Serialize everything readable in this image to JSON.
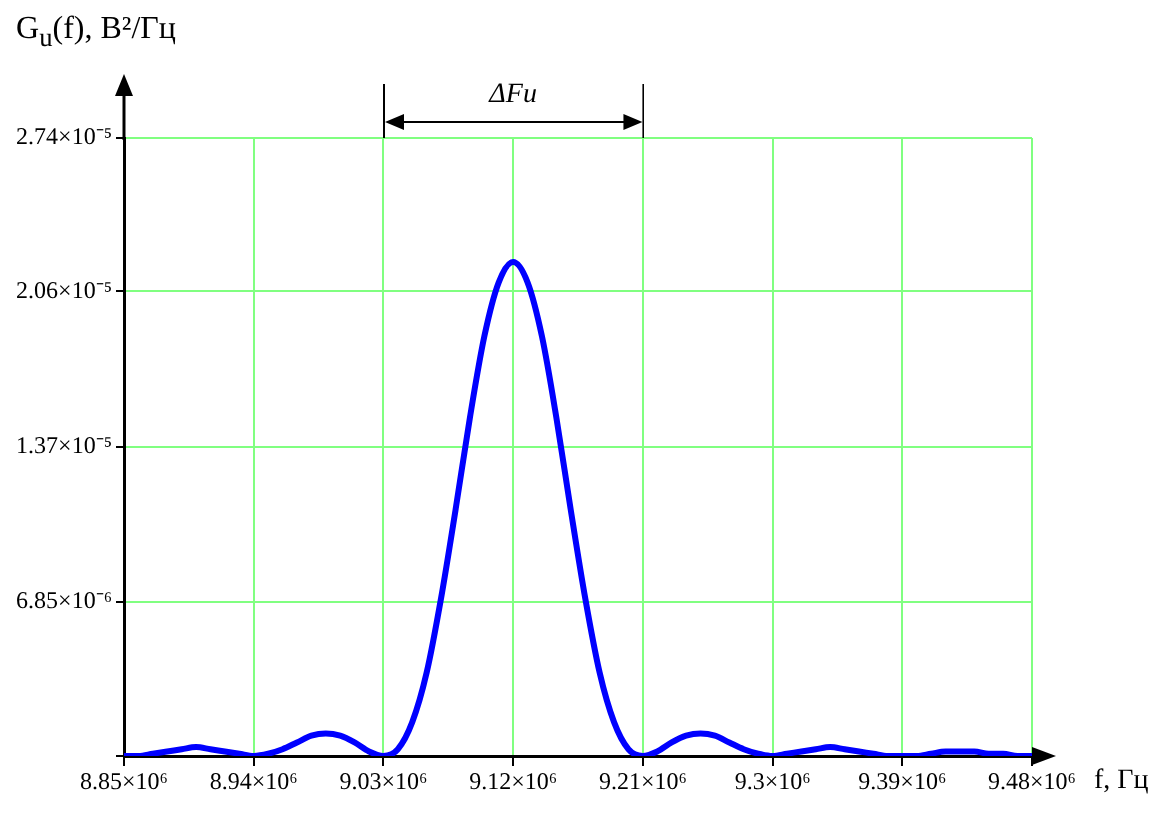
{
  "chart_data": {
    "type": "line",
    "xlabel": "f, Гц",
    "ylabel": "G$_{u}$(f), В²/Гц",
    "annotations": [
      "ΔFu"
    ],
    "x": [
      8850000,
      8860000,
      8870000,
      8880000,
      8890000,
      8900000,
      8910000,
      8920000,
      8930000,
      8940000,
      8950000,
      8960000,
      8970000,
      8980000,
      8990000,
      9000000,
      9010000,
      9020000,
      9030000,
      9040000,
      9050000,
      9060000,
      9070000,
      9080000,
      9090000,
      9100000,
      9110000,
      9120000,
      9130000,
      9140000,
      9150000,
      9160000,
      9170000,
      9180000,
      9190000,
      9200000,
      9210000,
      9220000,
      9230000,
      9240000,
      9250000,
      9260000,
      9270000,
      9280000,
      9290000,
      9300000,
      9310000,
      9320000,
      9330000,
      9340000,
      9350000,
      9360000,
      9370000,
      9380000,
      9390000,
      9400000,
      9410000,
      9420000,
      9430000,
      9440000,
      9450000,
      9460000,
      9470000,
      9480000
    ],
    "series": [
      {
        "color": "#0000ff",
        "values": [
          0,
          0,
          1e-07,
          2e-07,
          3e-07,
          4e-07,
          3e-07,
          2e-07,
          1e-07,
          0,
          1e-07,
          3e-07,
          6e-07,
          9e-07,
          1e-06,
          9e-07,
          6e-07,
          2e-07,
          0,
          3e-07,
          1.5e-06,
          3.7e-06,
          7e-06,
          1.09e-05,
          1.5e-05,
          1.86e-05,
          2.1e-05,
          2.19e-05,
          2.1e-05,
          1.86e-05,
          1.5e-05,
          1.09e-05,
          7e-06,
          3.7e-06,
          1.5e-06,
          3e-07,
          0,
          2e-07,
          6e-07,
          9e-07,
          1e-06,
          9e-07,
          6e-07,
          3e-07,
          1e-07,
          0,
          1e-07,
          2e-07,
          3e-07,
          4e-07,
          3e-07,
          2e-07,
          1e-07,
          0,
          0,
          0,
          1e-07,
          2e-07,
          2e-07,
          2e-07,
          1e-07,
          1e-07,
          0,
          0
        ]
      }
    ],
    "xlim": [
      8850000,
      9480000
    ],
    "ylim": [
      0,
      2.74e-05
    ],
    "xticks": [
      {
        "value": 8850000,
        "label": "8.85×10⁶"
      },
      {
        "value": 8940000,
        "label": "8.94×10⁶"
      },
      {
        "value": 9030000,
        "label": "9.03×10⁶"
      },
      {
        "value": 9120000,
        "label": "9.12×10⁶"
      },
      {
        "value": 9210000,
        "label": "9.21×10⁶"
      },
      {
        "value": 9300000,
        "label": "9.3×10⁶"
      },
      {
        "value": 9390000,
        "label": "9.39×10⁶"
      },
      {
        "value": 9480000,
        "label": "9.48×10⁶"
      }
    ],
    "yticks": [
      {
        "value": 0,
        "label": null
      },
      {
        "value": 6.85e-06,
        "label": "6.85×10⁻⁶"
      },
      {
        "value": 1.37e-05,
        "label": "1.37×10⁻⁵"
      },
      {
        "value": 2.06e-05,
        "label": "2.06×10⁻⁵"
      },
      {
        "value": 2.74e-05,
        "label": "2.74×10⁻⁵"
      }
    ],
    "grid": true,
    "marker": "none",
    "line_style": "solid"
  }
}
